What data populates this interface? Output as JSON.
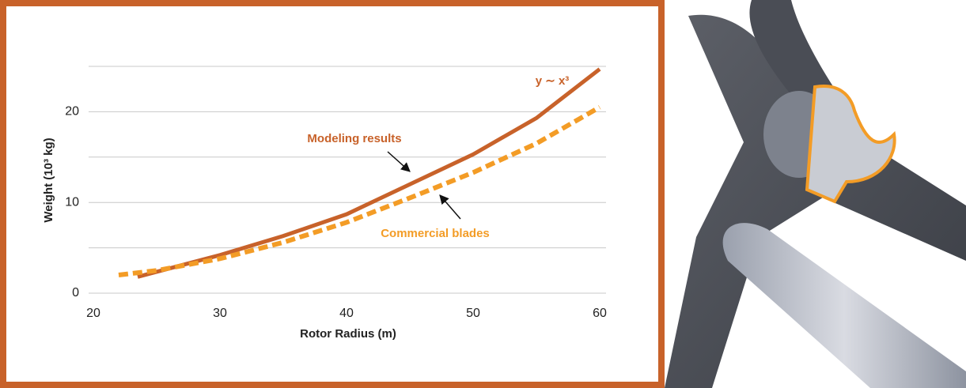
{
  "chart_data": {
    "type": "line",
    "xlabel": "Rotor Radius (m)",
    "ylabel": "Weight (10³ kg)",
    "annotation": "y ∼ x³",
    "xlim": [
      20,
      60
    ],
    "ylim": [
      0,
      25
    ],
    "xticks": [
      20,
      30,
      40,
      50,
      60
    ],
    "yticks": [
      0,
      10,
      20
    ],
    "ygrid": [
      0,
      5,
      10,
      15,
      20,
      25
    ],
    "series": [
      {
        "name": "Modeling results",
        "color": "#c8622a",
        "dashed": false,
        "x": [
          23.5,
          30,
          35,
          40,
          45,
          50,
          55,
          60
        ],
        "values": [
          1.8,
          4.2,
          6.3,
          8.7,
          12.0,
          15.3,
          19.3,
          24.7
        ]
      },
      {
        "name": "Commercial blades",
        "color": "#f39c26",
        "dashed": true,
        "x": [
          22,
          25,
          30,
          35,
          40,
          45,
          50,
          55,
          60
        ],
        "values": [
          2.0,
          2.5,
          3.8,
          5.6,
          7.8,
          10.5,
          13.3,
          16.5,
          20.5
        ]
      }
    ]
  }
}
